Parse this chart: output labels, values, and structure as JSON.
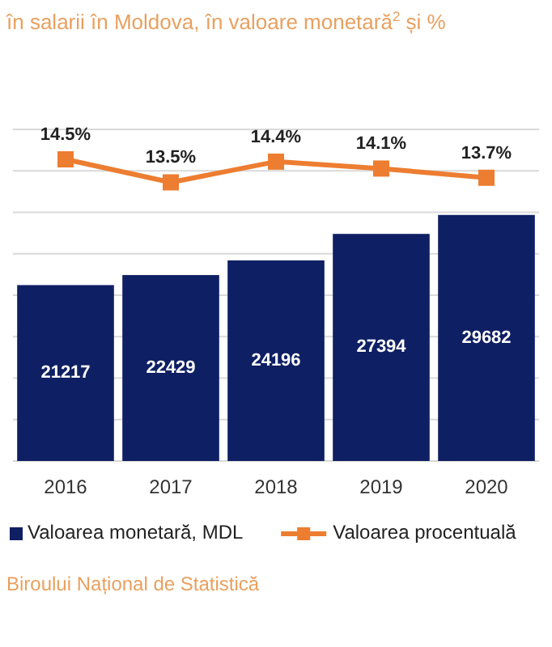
{
  "chart_data": {
    "type": "bar",
    "title": "în salarii în Moldova, în valoare monetară$^{2}$ și %",
    "categories": [
      "2016",
      "2017",
      "2018",
      "2019",
      "2020"
    ],
    "series": [
      {
        "name": "Valoarea monetară, MDL",
        "color": "#0f1f63",
        "values": [
          21217,
          22429,
          24196,
          27394,
          29682
        ],
        "value_labels": [
          "21217",
          "22429",
          "24196",
          "27394",
          "29682"
        ]
      },
      {
        "name": "Valoarea procentuală",
        "type": "line",
        "axis": "y2",
        "color": "#ed7d31",
        "values": [
          14.5,
          13.5,
          14.4,
          14.1,
          13.7
        ],
        "value_labels": [
          "14.5%",
          "13.5%",
          "14.4%",
          "14.1%",
          "13.7%"
        ]
      }
    ],
    "ylim": [
      0,
      40000
    ],
    "yticks": [
      {
        "value": 0,
        "label": null
      },
      {
        "value": 5000,
        "label": null
      },
      {
        "value": 10000,
        "label": null
      },
      {
        "value": 15000,
        "label": null
      },
      {
        "value": 20000,
        "label": null
      },
      {
        "value": 25000,
        "label": null
      },
      {
        "value": 30000,
        "label": null
      },
      {
        "value": 35000,
        "label": null
      },
      {
        "value": 40000,
        "label": null
      }
    ],
    "y2lim": [
      1.4,
      15.8
    ],
    "grid": "y",
    "tick_labels": "x",
    "marker": "square",
    "legend": "bottom",
    "annotations": [
      "Biroului Național de Statistică"
    ]
  }
}
